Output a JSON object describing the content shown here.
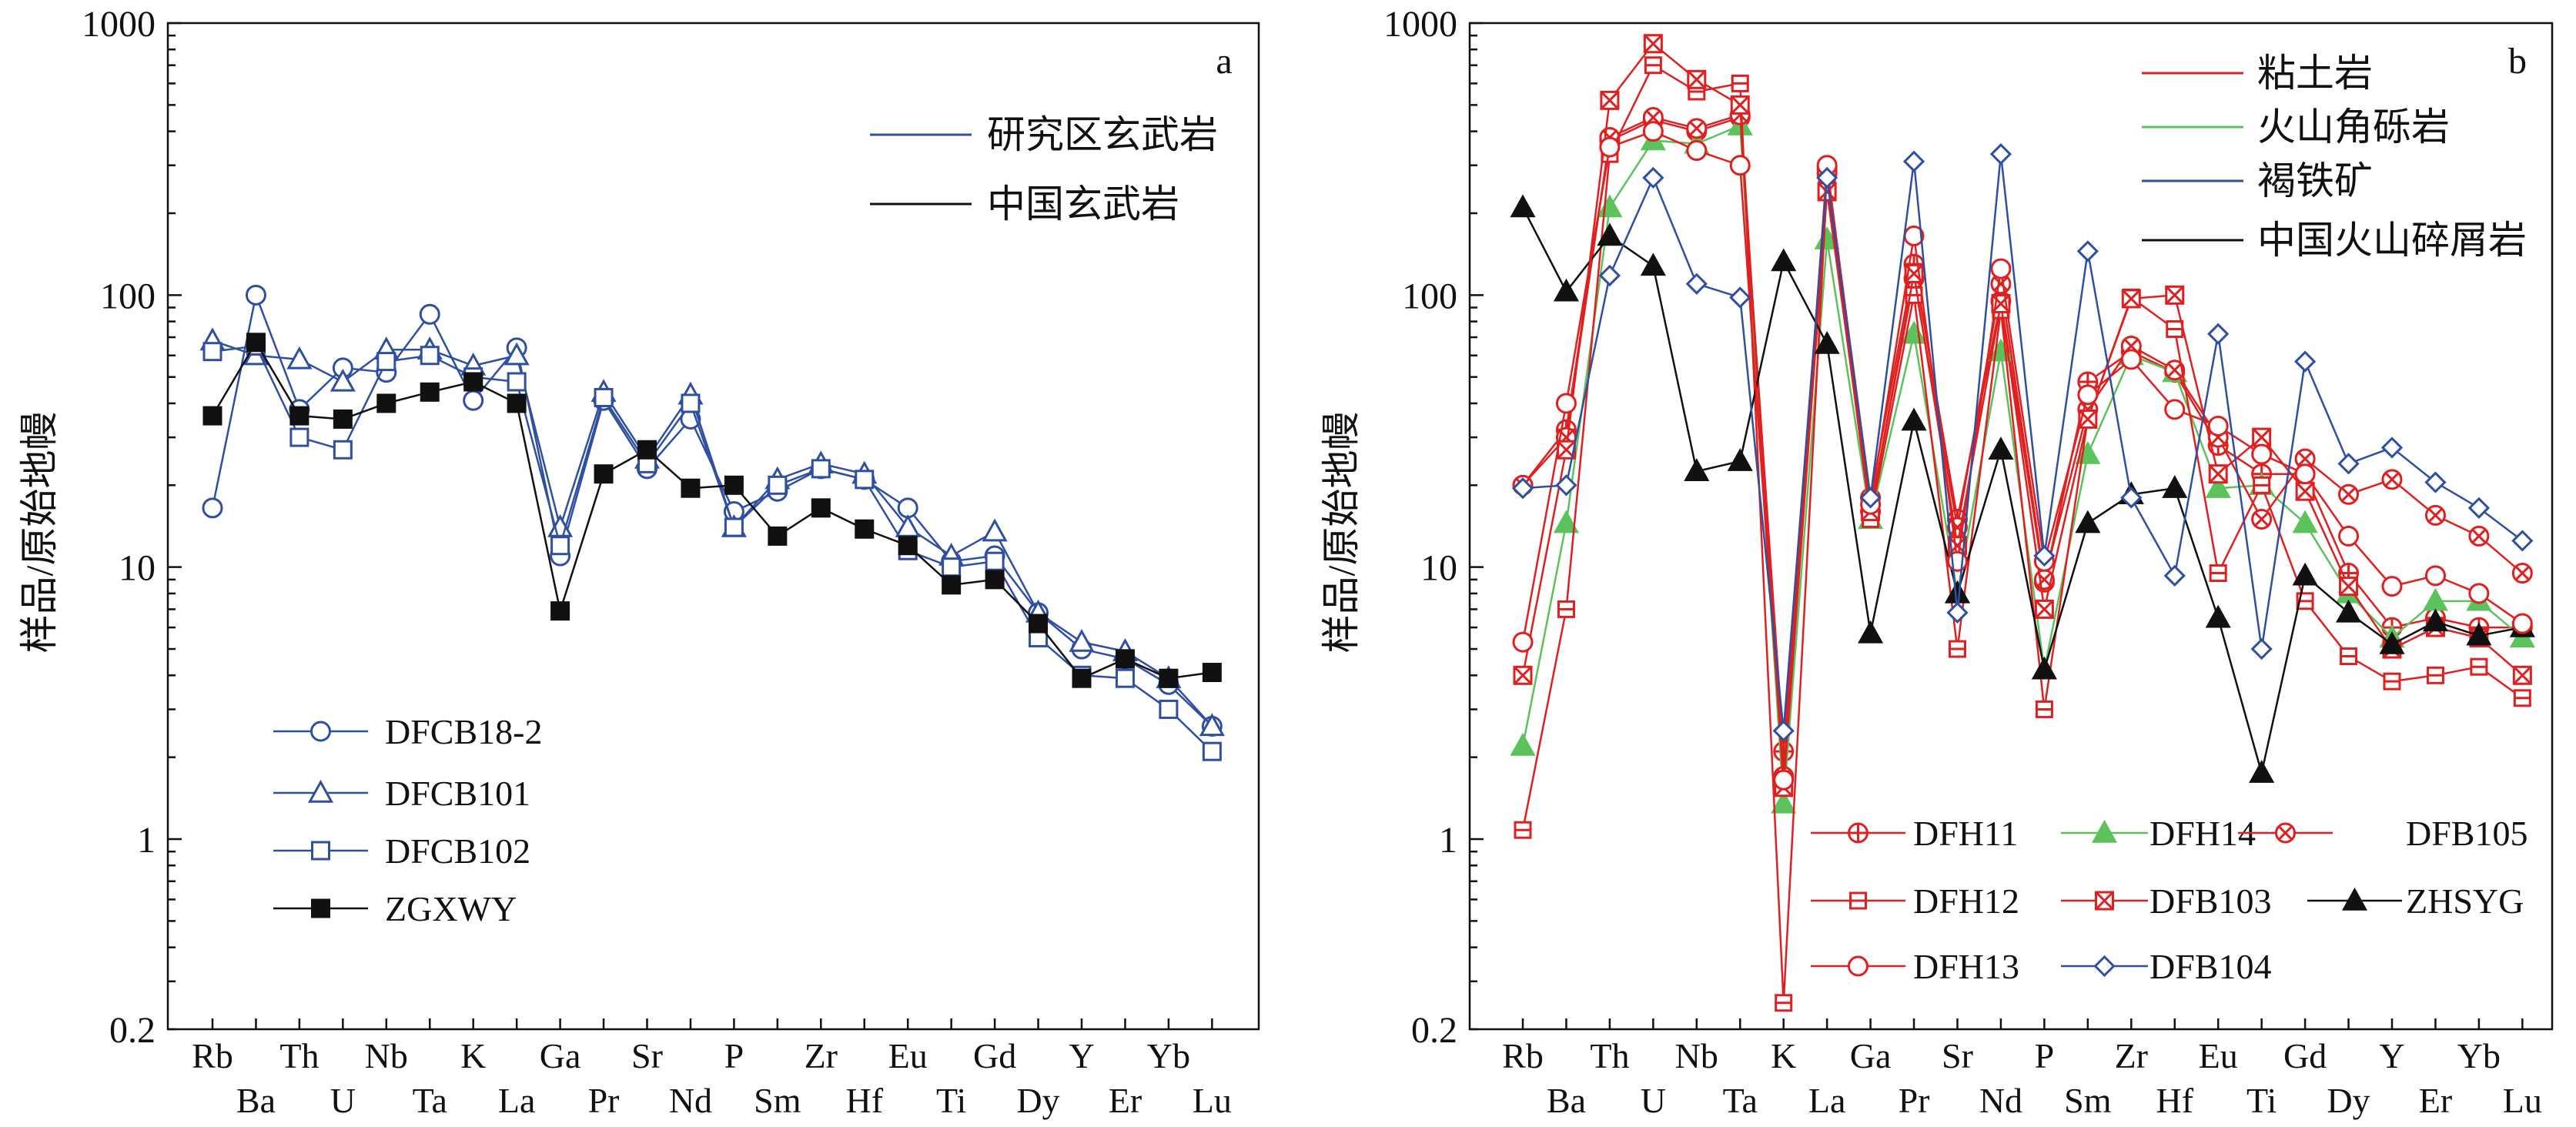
{
  "chart_data": [
    {
      "type": "line",
      "panel_label": "a",
      "ylabel": "样品/原始地幔",
      "yscale": "log",
      "ylim": [
        0.2,
        1000
      ],
      "yticks": [
        "0.2",
        "1",
        "10",
        "100",
        "1000"
      ],
      "ytick_values": [
        0.2,
        1,
        10,
        100,
        1000
      ],
      "x_top_labels": [
        "Rb",
        "Th",
        "Nb",
        "K",
        "Ga",
        "Sr",
        "P",
        "Zr",
        "Eu",
        "Gd",
        "Y",
        "Yb"
      ],
      "x_bottom_labels": [
        "Ba",
        "U",
        "Ta",
        "La",
        "Pr",
        "Nd",
        "Sm",
        "Hf",
        "Ti",
        "Dy",
        "Er",
        "Lu"
      ],
      "categories": [
        "Rb",
        "Ba",
        "Th",
        "U",
        "Nb",
        "Ta",
        "K",
        "La",
        "Ga",
        "Pr",
        "Sr",
        "Nd",
        "P",
        "Sm",
        "Zr",
        "Hf",
        "Eu",
        "Ti",
        "Gd",
        "Dy",
        "Y",
        "Er",
        "Yb",
        "Lu"
      ],
      "group_legend": [
        {
          "label": "研究区玄武岩",
          "color": "#2F4FA2"
        },
        {
          "label": "中国玄武岩",
          "color": "#111111"
        }
      ],
      "series": [
        {
          "name": "DFCB18-2",
          "color": "#2F4FA2",
          "marker": "circle-open",
          "values": [
            16.5,
            100,
            38,
            54,
            52,
            85,
            41,
            64,
            11,
            41,
            23,
            35,
            16,
            19,
            23,
            21,
            16.5,
            10.5,
            11,
            6.8,
            5,
            4.6,
            3.7,
            2.6
          ]
        },
        {
          "name": "DFCB101",
          "color": "#2F4FA2",
          "marker": "triangle-open",
          "values": [
            68,
            60,
            58,
            48,
            63,
            63,
            55,
            60,
            14,
            44,
            25,
            43,
            14,
            21,
            24,
            22,
            14,
            11,
            13.5,
            6.8,
            5.3,
            4.9,
            3.9,
            2.6
          ]
        },
        {
          "name": "DFCB102",
          "color": "#2F4FA2",
          "marker": "square-open",
          "values": [
            62,
            65,
            30,
            27,
            57,
            60,
            50,
            48,
            12,
            42,
            24,
            40,
            14,
            20,
            23,
            21,
            11.5,
            10,
            10.5,
            5.5,
            4,
            3.9,
            3,
            2.1
          ]
        },
        {
          "name": "ZGXWY",
          "color": "#111111",
          "marker": "square-filled",
          "values": [
            36,
            67,
            36,
            35,
            40,
            44,
            48,
            40,
            6.9,
            22,
            27,
            19.5,
            20,
            13,
            16.5,
            13.8,
            12,
            8.6,
            9,
            6.2,
            3.9,
            4.6,
            3.9,
            4.1
          ]
        }
      ]
    },
    {
      "type": "line",
      "panel_label": "b",
      "ylabel": "样品/原始地幔",
      "yscale": "log",
      "ylim": [
        0.2,
        1000
      ],
      "yticks": [
        "0.2",
        "1",
        "10",
        "100",
        "1000"
      ],
      "ytick_values": [
        0.2,
        1,
        10,
        100,
        1000
      ],
      "x_top_labels": [
        "Rb",
        "Th",
        "Nb",
        "K",
        "Ga",
        "Sr",
        "P",
        "Zr",
        "Eu",
        "Gd",
        "Y",
        "Yb"
      ],
      "x_bottom_labels": [
        "Ba",
        "U",
        "Ta",
        "La",
        "Pr",
        "Nd",
        "Sm",
        "Hf",
        "Ti",
        "Dy",
        "Er",
        "Lu"
      ],
      "categories": [
        "Rb",
        "Ba",
        "Th",
        "U",
        "Nb",
        "Ta",
        "K",
        "La",
        "Ga",
        "Pr",
        "Sr",
        "Nd",
        "P",
        "Sm",
        "Zr",
        "Hf",
        "Eu",
        "Ti",
        "Gd",
        "Dy",
        "Y",
        "Er",
        "Yb",
        "Lu"
      ],
      "group_legend": [
        {
          "label": "粘土岩",
          "color": "#E02020"
        },
        {
          "label": "火山角砾岩",
          "color": "#5CC25C"
        },
        {
          "label": "褐铁矿",
          "color": "#2F4FA2"
        },
        {
          "label": "中国火山碎屑岩",
          "color": "#111111"
        }
      ],
      "series": [
        {
          "name": "DFH11",
          "color": "#E02020",
          "marker": "circle-plus",
          "values": [
            20,
            32,
            370,
            440,
            400,
            450,
            2.1,
            290,
            18,
            130,
            15,
            95,
            8.8,
            48,
            62,
            52,
            28,
            22,
            22,
            9.5,
            6,
            6.5,
            6,
            6
          ]
        },
        {
          "name": "DFH14",
          "color": "#5CC25C",
          "marker": "triangle-filled",
          "values": [
            2.2,
            14.5,
            210,
            370,
            360,
            420,
            1.35,
            160,
            15,
            72,
            8,
            62,
            4.2,
            26,
            60,
            52,
            19.5,
            20,
            14.5,
            8,
            5.5,
            7.5,
            7.5,
            5.5
          ]
        },
        {
          "name": "DFB105",
          "color": "#E02020",
          "marker": "circle-x",
          "values": [
            20,
            30,
            380,
            450,
            410,
            460,
            1.7,
            280,
            16,
            115,
            14,
            110,
            9,
            38,
            65,
            53,
            30,
            15,
            25,
            18.5,
            21,
            15.5,
            13,
            9.5
          ]
        },
        {
          "name": "DFH12",
          "color": "#E02020",
          "marker": "square-minus",
          "values": [
            1.08,
            7,
            330,
            700,
            560,
            600,
            0.25,
            260,
            15,
            100,
            5,
            88,
            3,
            35,
            98,
            75,
            9.5,
            20,
            7.5,
            4.7,
            3.8,
            4,
            4.3,
            3.3
          ]
        },
        {
          "name": "DFB103",
          "color": "#E02020",
          "marker": "square-x",
          "values": [
            4,
            27,
            520,
            840,
            620,
            500,
            1.55,
            240,
            16,
            120,
            12,
            93,
            7,
            35,
            97,
            100,
            22,
            30,
            19,
            8.5,
            5,
            6,
            5.5,
            4
          ]
        },
        {
          "name": "ZHSYG",
          "color": "#111111",
          "marker": "triangle-filled",
          "values": [
            210,
            103,
            165,
            128,
            22.5,
            24.5,
            133,
            66,
            5.7,
            34.5,
            8,
            27,
            4.2,
            14.5,
            18.5,
            19.5,
            6.5,
            1.75,
            9.3,
            6.8,
            5.2,
            6.3,
            5.6,
            6
          ]
        },
        {
          "name": "DFH13",
          "color": "#E02020",
          "marker": "circle-open",
          "values": [
            5.3,
            40,
            350,
            400,
            340,
            300,
            1.65,
            300,
            17,
            165,
            10.5,
            125,
            10.5,
            43,
            58,
            38,
            33,
            26,
            22,
            13,
            8.5,
            9.3,
            8,
            6.2
          ]
        },
        {
          "name": "DFB104",
          "color": "#2F4FA2",
          "marker": "diamond-open",
          "values": [
            19.5,
            20,
            118,
            270,
            110,
            98,
            2.5,
            270,
            18,
            310,
            6.8,
            330,
            11,
            145,
            18,
            9.3,
            72,
            5,
            57,
            24,
            27.5,
            20.5,
            16.5,
            12.5
          ]
        }
      ]
    }
  ]
}
